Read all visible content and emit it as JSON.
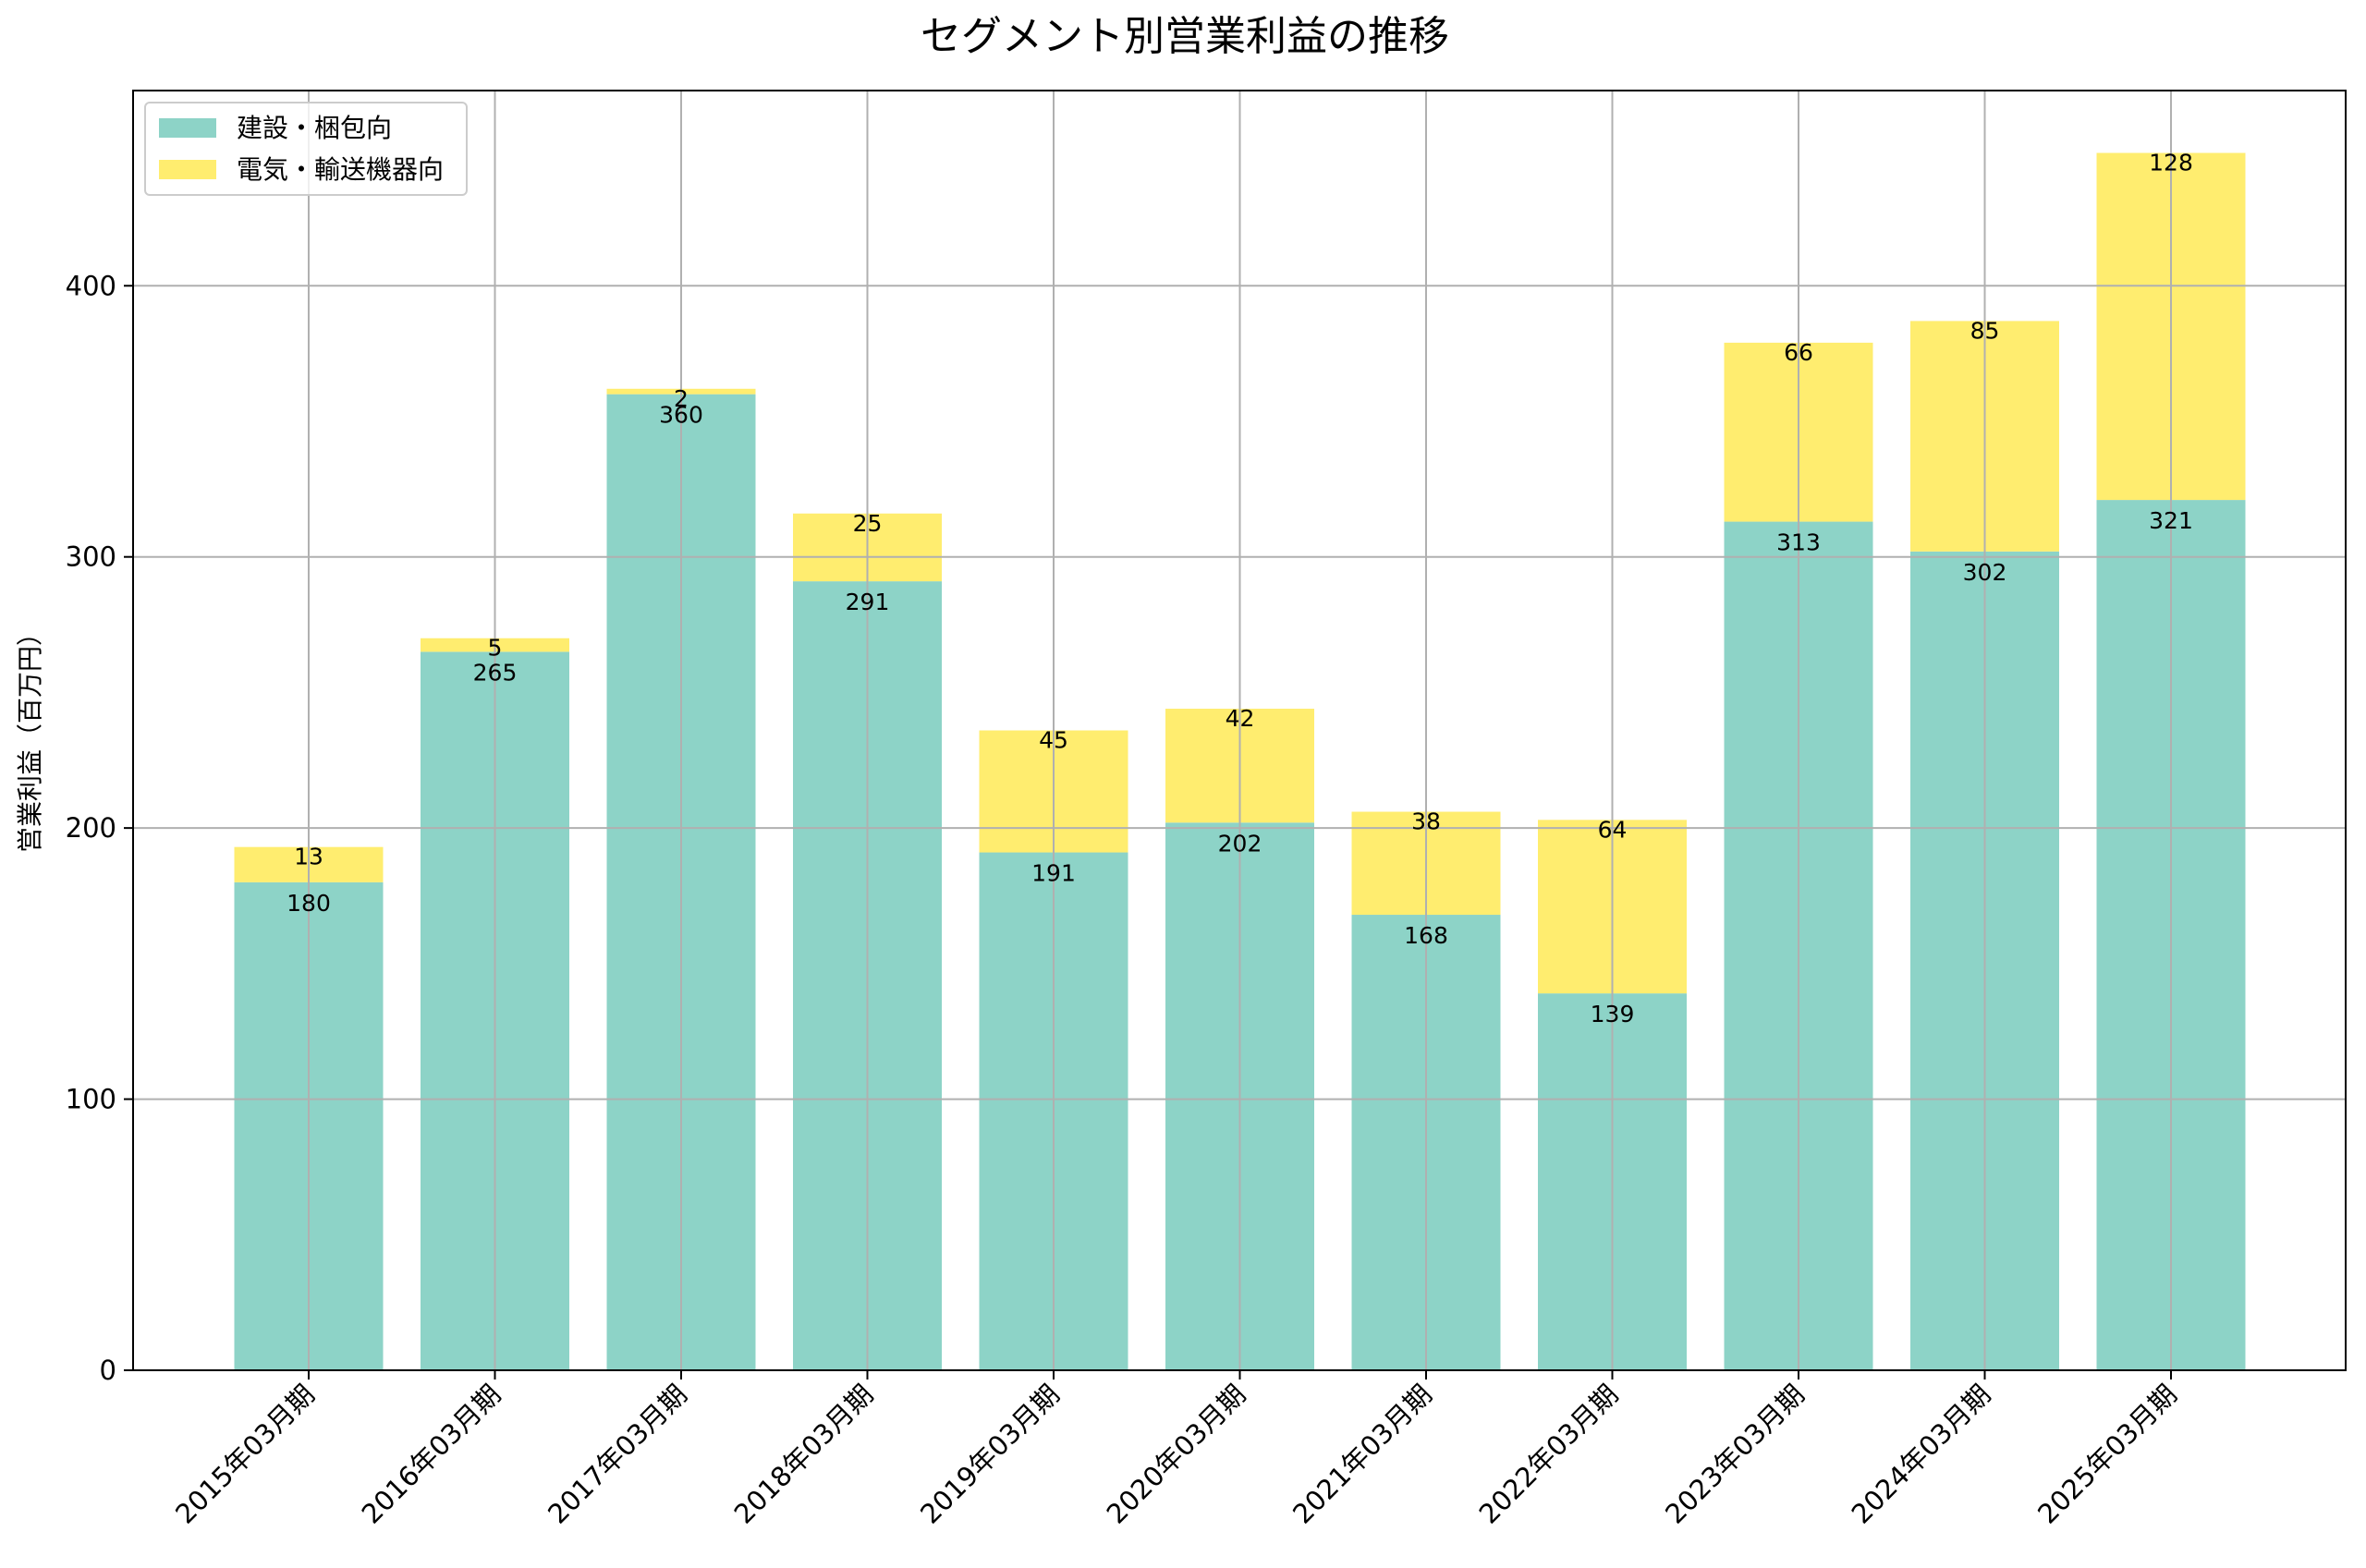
{
  "chart_data": {
    "type": "bar",
    "stacked": true,
    "title": "セグメント別営業利益の推移",
    "xlabel": "",
    "ylabel": "営業利益（百万円）",
    "ylim": [
      0,
      472
    ],
    "yticks": [
      0,
      100,
      200,
      300,
      400
    ],
    "grid": true,
    "legend_position": "top-left",
    "categories": [
      "2015年03月期",
      "2016年03月期",
      "2017年03月期",
      "2018年03月期",
      "2019年03月期",
      "2020年03月期",
      "2021年03月期",
      "2022年03月期",
      "2023年03月期",
      "2024年03月期",
      "2025年03月期"
    ],
    "series": [
      {
        "name": "建設・梱包向",
        "color": "#8dd3c7",
        "values": [
          180,
          265,
          360,
          291,
          191,
          202,
          168,
          139,
          313,
          302,
          321
        ]
      },
      {
        "name": "電気・輸送機器向",
        "color": "#ffed6f",
        "values": [
          13,
          5,
          2,
          25,
          45,
          42,
          38,
          64,
          66,
          85,
          128
        ]
      }
    ]
  }
}
